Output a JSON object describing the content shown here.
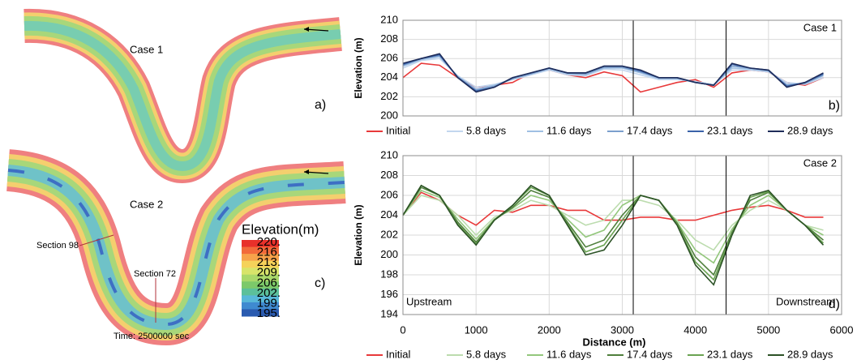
{
  "chart_data": [
    {
      "type": "line",
      "ylabel": "Elevation (m)",
      "case_label": "Case 1",
      "panel_label": "b)",
      "xlim": [
        0,
        6000
      ],
      "xticks": [
        0,
        1000,
        2000,
        3000,
        4000,
        5000,
        6000
      ],
      "xtick_labels": false,
      "ylim": [
        200,
        210
      ],
      "yticks": [
        200,
        202,
        204,
        206,
        208,
        210
      ],
      "grid": true,
      "vlines": [
        3150,
        4420
      ],
      "x": [
        0,
        250,
        500,
        750,
        1000,
        1250,
        1500,
        1750,
        2000,
        2250,
        2500,
        2750,
        3000,
        3250,
        3500,
        3750,
        4000,
        4250,
        4500,
        4750,
        5000,
        5250,
        5500,
        5750
      ],
      "series": [
        {
          "name": "Initial",
          "color": "#e8393a",
          "values": [
            204,
            205.5,
            205.3,
            204,
            203,
            203.2,
            203.5,
            204.5,
            204.8,
            204.3,
            204,
            204.6,
            204.2,
            202.5,
            203,
            203.5,
            203.8,
            203,
            204.5,
            204.8,
            204.6,
            203.5,
            203.2,
            204
          ]
        },
        {
          "name": "5.8 days",
          "color": "#c2d6ee",
          "values": [
            205,
            205.8,
            206,
            204.2,
            203,
            203.3,
            203.8,
            204.3,
            204.8,
            204.3,
            204.2,
            204.9,
            204.8,
            204.3,
            203.8,
            203.8,
            203.6,
            203.3,
            204.8,
            204.8,
            204.6,
            203.5,
            203.3,
            204
          ]
        },
        {
          "name": "11.6 days",
          "color": "#9fbfe3",
          "values": [
            205.2,
            205.9,
            206.2,
            204.1,
            202.8,
            203.2,
            203.9,
            204.4,
            204.9,
            204.4,
            204.3,
            205,
            205,
            204.5,
            203.9,
            203.9,
            203.5,
            203.2,
            205,
            204.9,
            204.7,
            203.3,
            203.4,
            204.2
          ]
        },
        {
          "name": "17.4 days",
          "color": "#7b9fcd",
          "values": [
            205.3,
            206,
            206.3,
            204.1,
            202.7,
            203.1,
            203.9,
            204.4,
            205,
            204.5,
            204.4,
            205.1,
            205.1,
            204.6,
            204,
            204,
            203.5,
            203.2,
            205.2,
            205,
            204.7,
            203.2,
            203.4,
            204.3
          ]
        },
        {
          "name": "23.1 days",
          "color": "#3a62a8",
          "values": [
            205.4,
            206,
            206.4,
            204,
            202.6,
            203,
            204,
            204.5,
            205,
            204.5,
            204.5,
            205.2,
            205.2,
            204.7,
            204,
            204,
            203.5,
            203.2,
            205.4,
            205,
            204.8,
            203.1,
            203.5,
            204.4
          ]
        },
        {
          "name": "28.9 days",
          "color": "#1f2d5a",
          "values": [
            205.5,
            206,
            206.5,
            204,
            202.5,
            203,
            204,
            204.5,
            205,
            204.5,
            204.5,
            205.2,
            205.2,
            204.8,
            204,
            204,
            203.5,
            203.2,
            205.5,
            205,
            204.8,
            203,
            203.5,
            204.5
          ]
        }
      ]
    },
    {
      "type": "line",
      "ylabel": "Elevation (m)",
      "xlabel": "Distance (m)",
      "case_label": "Case 2",
      "panel_label": "d)",
      "left_note": "Upstream",
      "right_note": "Downstream",
      "xlim": [
        0,
        6000
      ],
      "xticks": [
        0,
        1000,
        2000,
        3000,
        4000,
        5000,
        6000
      ],
      "xtick_labels": true,
      "ylim": [
        194,
        210
      ],
      "yticks": [
        194,
        196,
        198,
        200,
        202,
        204,
        206,
        208,
        210
      ],
      "grid": true,
      "vlines": [
        3150,
        4420
      ],
      "x": [
        0,
        250,
        500,
        750,
        1000,
        1250,
        1500,
        1750,
        2000,
        2250,
        2500,
        2750,
        3000,
        3250,
        3500,
        3750,
        4000,
        4250,
        4500,
        4750,
        5000,
        5250,
        5500,
        5750
      ],
      "series": [
        {
          "name": "Initial",
          "color": "#e8393a",
          "values": [
            204,
            206.3,
            205.5,
            204,
            203,
            204.5,
            204.3,
            205,
            205,
            204.5,
            204.5,
            203.5,
            203.5,
            203.8,
            203.8,
            203.5,
            203.5,
            204,
            204.5,
            204.8,
            205,
            204.5,
            203.8,
            203.8
          ]
        },
        {
          "name": "5.8 days",
          "color": "#bcdcae",
          "values": [
            204,
            206,
            205.5,
            204,
            202,
            203.8,
            204.5,
            205.5,
            205,
            204,
            203,
            203.5,
            205.5,
            205.5,
            205,
            203.5,
            201.5,
            200.5,
            203,
            204.5,
            205.5,
            204.5,
            203,
            202.5
          ]
        },
        {
          "name": "11.6 days",
          "color": "#93c77c",
          "values": [
            204,
            206.5,
            205.8,
            203.6,
            201.6,
            203.6,
            204.7,
            206,
            205.5,
            203.6,
            201.8,
            202.5,
            205,
            206,
            205.5,
            203.3,
            200.5,
            199.2,
            202.6,
            205,
            206,
            204.5,
            203,
            202
          ]
        },
        {
          "name": "17.4 days",
          "color": "#4f7f3c",
          "values": [
            204,
            206.8,
            206,
            203.3,
            201.3,
            203.5,
            204.8,
            206.5,
            205.8,
            203.3,
            200.8,
            201.5,
            204,
            206,
            205.5,
            203.2,
            199.8,
            198,
            202.3,
            205.5,
            206.3,
            204.5,
            203,
            201.5
          ]
        },
        {
          "name": "23.1 days",
          "color": "#6aa352",
          "values": [
            204,
            207,
            206,
            203.1,
            201.1,
            203.5,
            205,
            206.8,
            206,
            203.1,
            200.3,
            201,
            203.5,
            206,
            205.5,
            203.1,
            199.3,
            197.5,
            202.1,
            205.8,
            206.4,
            204.5,
            203,
            201.2
          ]
        },
        {
          "name": "28.9 days",
          "color": "#2c5226",
          "values": [
            204,
            207,
            206,
            203,
            201,
            203.5,
            205,
            207,
            206,
            203,
            200,
            200.5,
            203,
            206,
            205.5,
            203,
            199,
            197,
            202,
            206,
            206.5,
            204.5,
            203,
            201
          ]
        }
      ]
    }
  ],
  "maps": {
    "case1": {
      "label": "Case 1",
      "panel": "a)"
    },
    "case2": {
      "label": "Case 2",
      "panel": "c)"
    },
    "section_98": "Section 98",
    "section_72": "Section 72",
    "time": "Time: 2500000 sec",
    "colorbar": {
      "title": "Elevation(m)",
      "labels": [
        "220.",
        "216.",
        "213.",
        "209.",
        "206.",
        "202.",
        "199.",
        "195."
      ]
    }
  }
}
